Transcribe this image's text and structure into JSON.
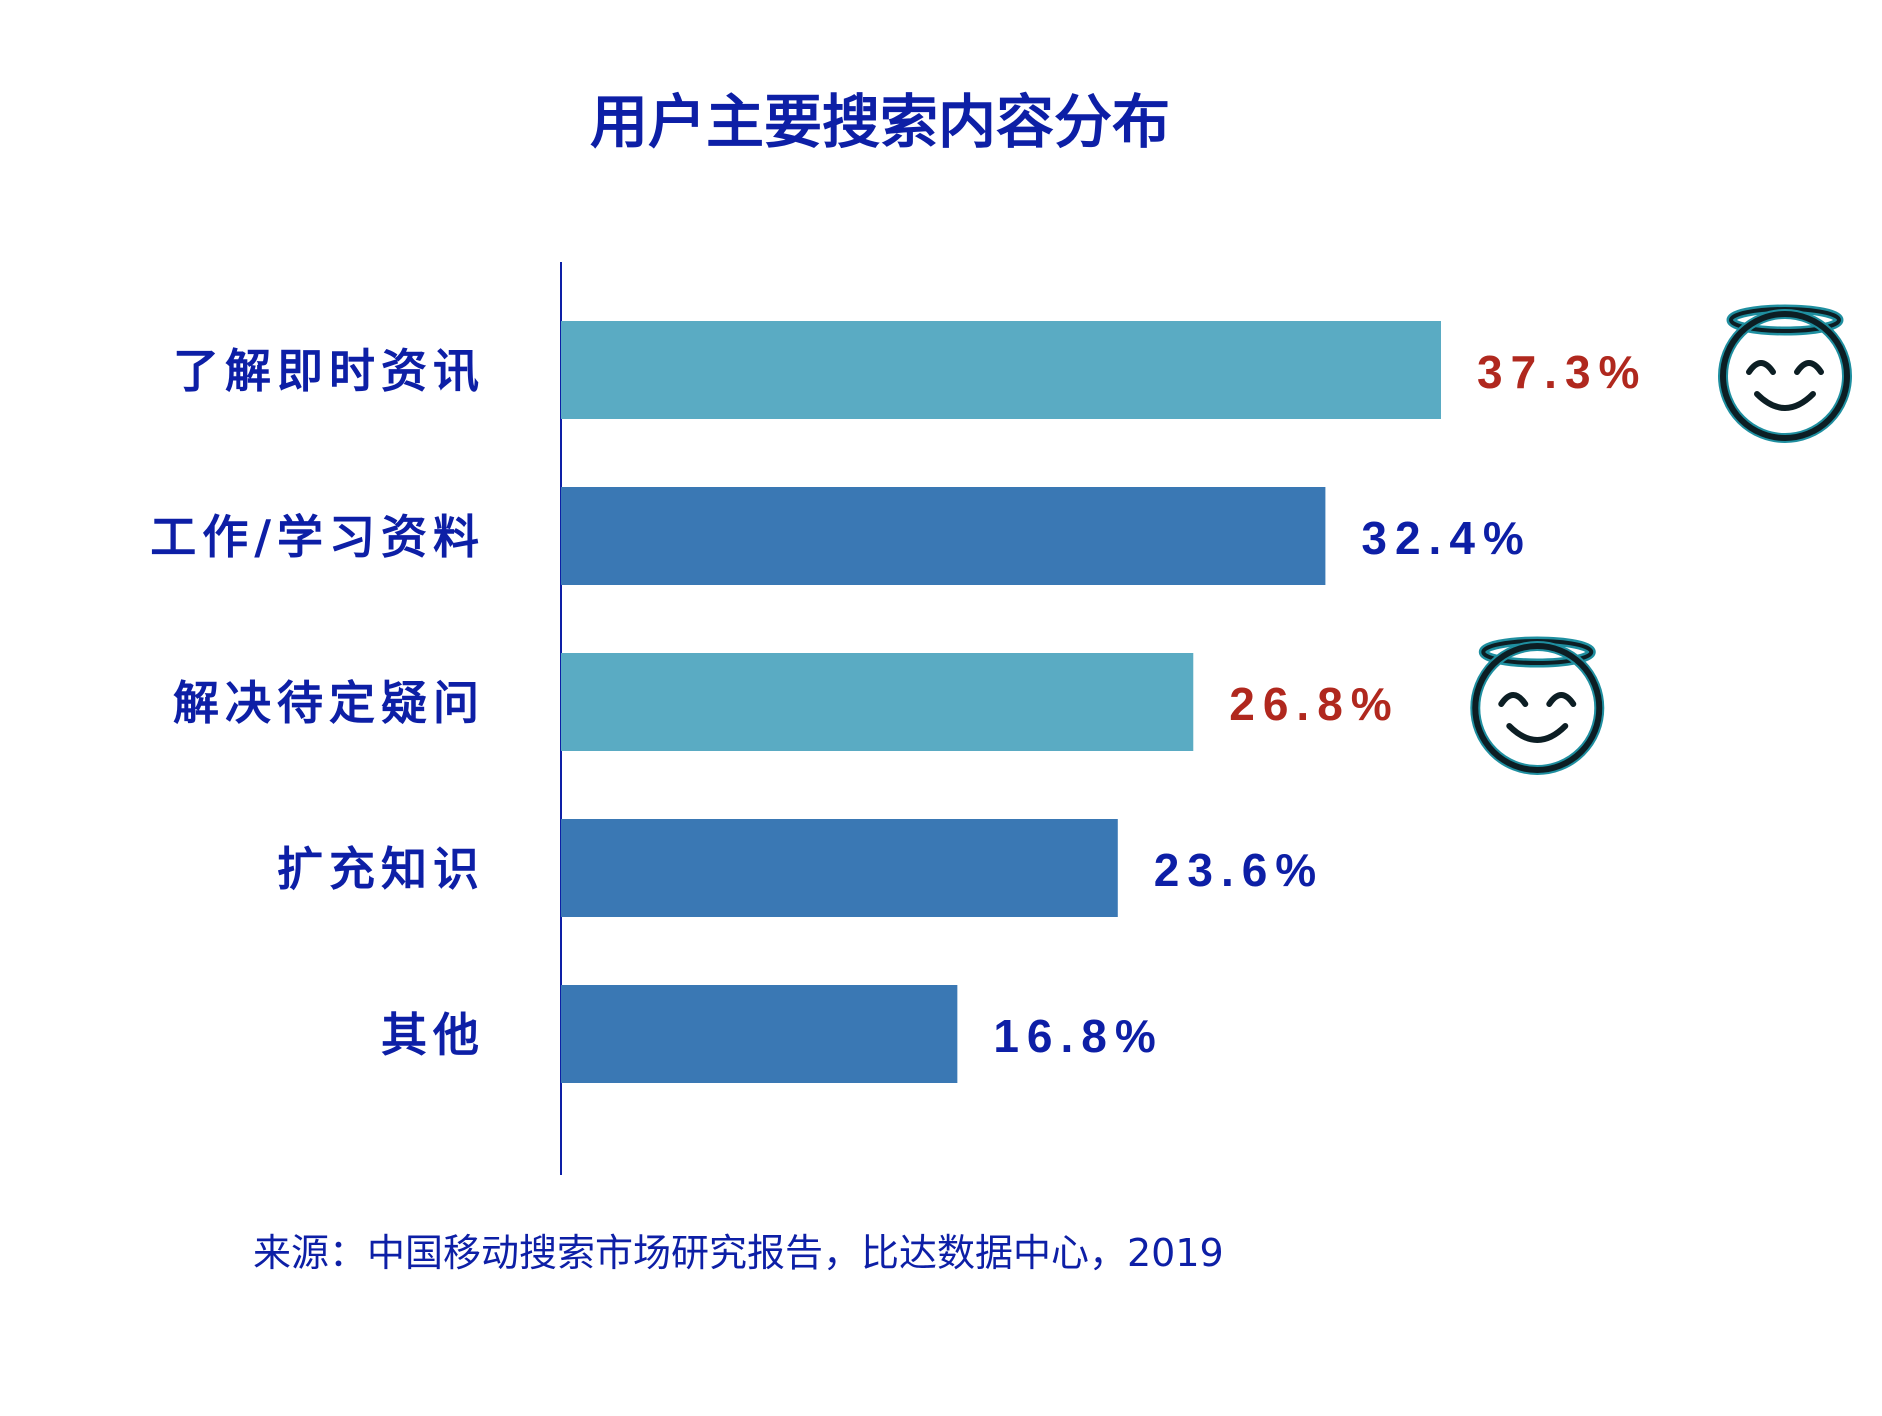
{
  "colors": {
    "title": "#0d1fa6",
    "axis": "#0d1fa6",
    "bar_light": "#5aabc3",
    "bar_dark": "#3a78b4",
    "value_highlight": "#b0281e",
    "value_normal": "#0d1fa6",
    "icon_stroke": "#0c1e24",
    "icon_halo": "#1f8fa0"
  },
  "chart_data": {
    "type": "bar",
    "orientation": "horizontal",
    "title": "用户主要搜索内容分布",
    "categories": [
      "了解即时资讯",
      "工作/学习资料",
      "解决待定疑问",
      "扩充知识",
      "其他"
    ],
    "values": [
      37.3,
      32.4,
      26.8,
      23.6,
      16.8
    ],
    "value_labels": [
      "37.3%",
      "32.4%",
      "26.8%",
      "23.6%",
      "16.8%"
    ],
    "highlighted": [
      true,
      false,
      true,
      false,
      false
    ],
    "xlim": [
      0,
      37.3
    ],
    "xlabel": "",
    "ylabel": "",
    "grid": false,
    "legend": "none",
    "icons": [
      "smile-halo-icon",
      "",
      "smile-halo-icon",
      "",
      ""
    ]
  },
  "source": "来源：中国移动搜索市场研究报告，比达数据中心，2019"
}
